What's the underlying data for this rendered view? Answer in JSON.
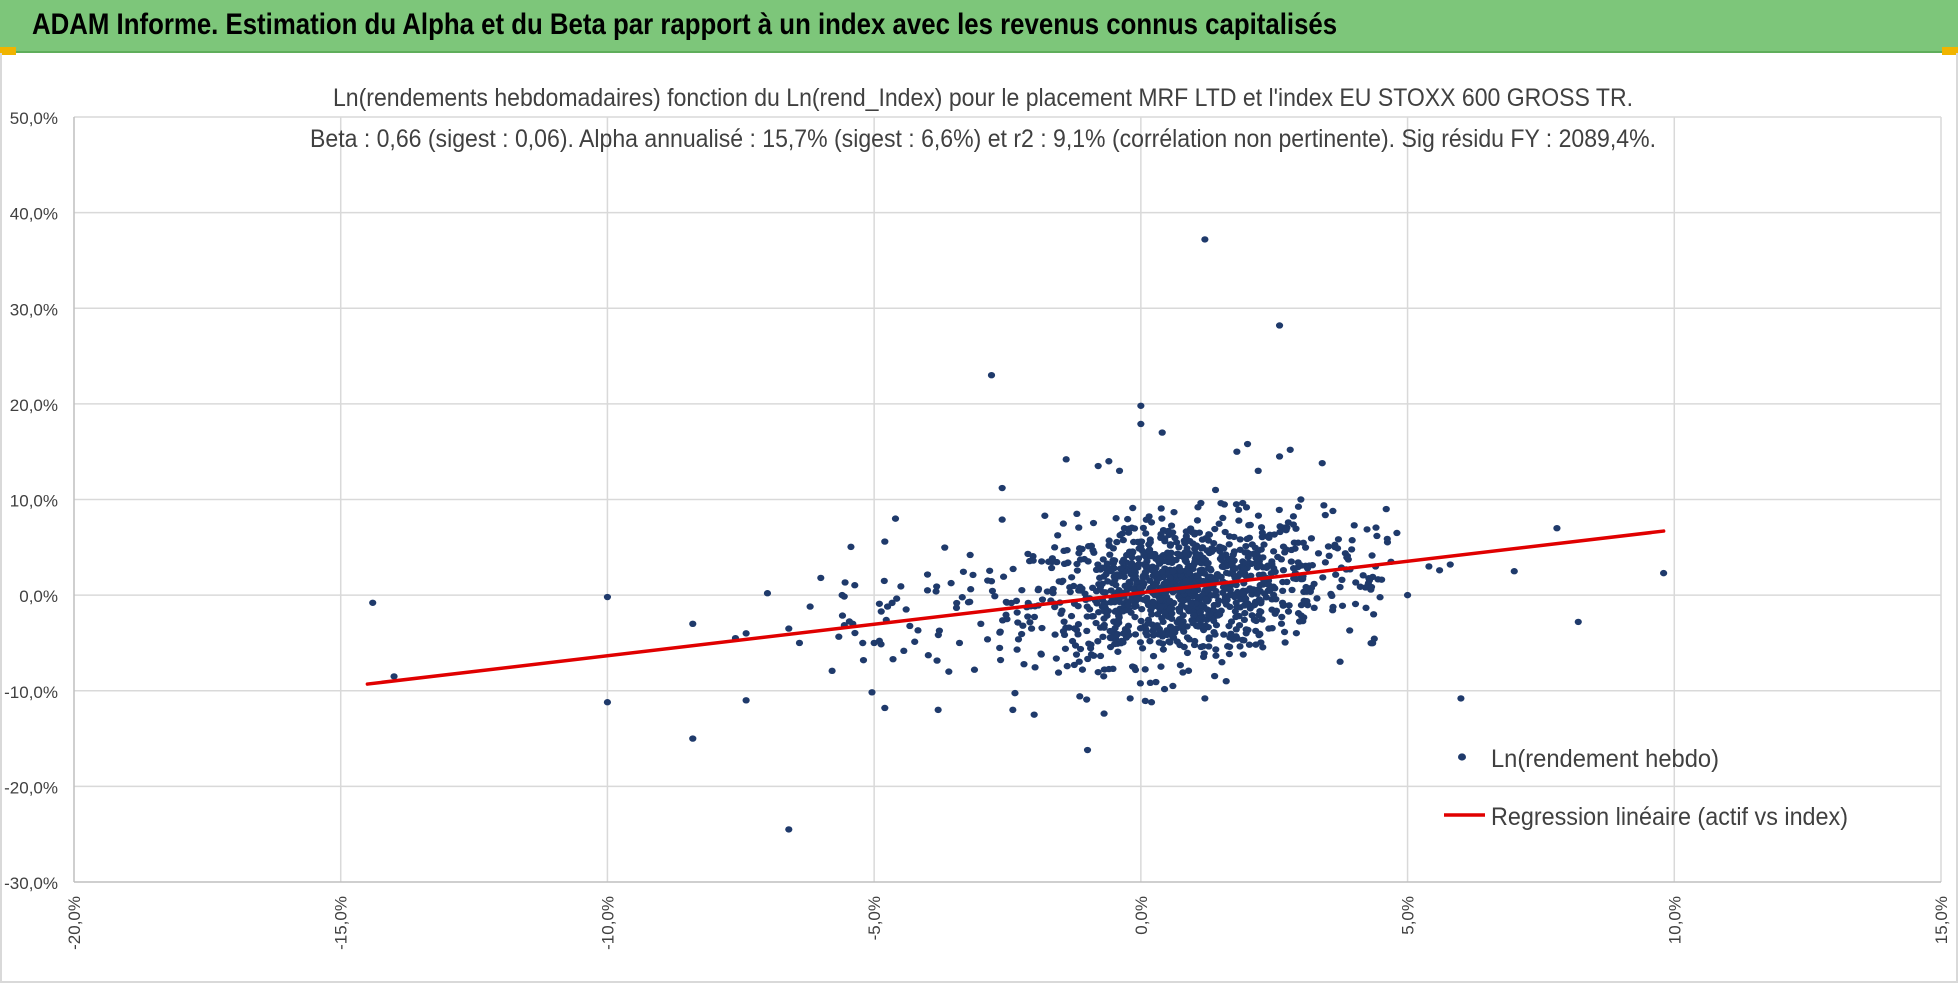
{
  "header": {
    "title": "ADAM Informe. Estimation du Alpha et du Beta par rapport à un index avec les revenus connus capitalisés"
  },
  "colors": {
    "header_bg": "#7dc67a",
    "corner_accent": "#f0b400",
    "points": "#1f3a6b",
    "regression": "#e00000",
    "grid": "#d9d9d9"
  },
  "chart_data": {
    "type": "scatter",
    "title": "Ln(rendements hebdomadaires) fonction du Ln(rend_Index) pour le placement MRF LTD et l'index EU STOXX 600 GROSS TR.",
    "subtitle": "Beta : 0,66 (sigest : 0,06).  Alpha annualisé : 15,7% (sigest : 6,6%) et r2 : 9,1% (corrélation non pertinente). Sig résidu FY : 2089,4%.",
    "xlabel": "",
    "ylabel": "",
    "xlim": [
      -20,
      15
    ],
    "ylim": [
      -30,
      50
    ],
    "x_ticks": [
      -20,
      -15,
      -10,
      -5,
      0,
      5,
      10,
      15
    ],
    "y_ticks": [
      -30,
      -20,
      -10,
      0,
      10,
      20,
      30,
      40,
      50
    ],
    "x_tick_labels": [
      "-20,0%",
      "-15,0%",
      "-10,0%",
      "-5,0%",
      "0,0%",
      "5,0%",
      "10,0%",
      "15,0%"
    ],
    "y_tick_labels": [
      "-30,0%",
      "-20,0%",
      "-10,0%",
      "0,0%",
      "10,0%",
      "20,0%",
      "30,0%",
      "40,0%",
      "50,0%"
    ],
    "grid": true,
    "legend_position": "bottom-right",
    "series": [
      {
        "name": "Ln(rendement hebdo)",
        "kind": "scatter",
        "points": [
          [
            -14.4,
            -0.8
          ],
          [
            -14.0,
            -8.5
          ],
          [
            -10.0,
            -0.2
          ],
          [
            -10.0,
            -11.2
          ],
          [
            -8.4,
            -3.0
          ],
          [
            -8.4,
            -15.0
          ],
          [
            -7.6,
            -4.5
          ],
          [
            -7.4,
            -4.0
          ],
          [
            -7.4,
            -11.0
          ],
          [
            -7.0,
            0.2
          ],
          [
            -6.6,
            -24.5
          ],
          [
            -6.6,
            -3.5
          ],
          [
            -6.4,
            -5.0
          ],
          [
            -6.2,
            -1.2
          ],
          [
            -6.0,
            1.8
          ],
          [
            -5.6,
            0.0
          ],
          [
            -5.4,
            -3.0
          ],
          [
            -5.2,
            -6.8
          ],
          [
            -5.0,
            -5.0
          ],
          [
            -4.8,
            -11.8
          ],
          [
            -4.8,
            5.6
          ],
          [
            -4.6,
            8.0
          ],
          [
            -4.4,
            -1.5
          ],
          [
            -4.0,
            0.5
          ],
          [
            -3.8,
            -12.0
          ],
          [
            -3.6,
            -8.0
          ],
          [
            -3.4,
            -5.0
          ],
          [
            -3.2,
            4.2
          ],
          [
            -3.0,
            -3.0
          ],
          [
            -2.8,
            23.0
          ],
          [
            -2.6,
            11.2
          ],
          [
            -2.6,
            7.9
          ],
          [
            -2.4,
            -12.0
          ],
          [
            -2.0,
            -12.5
          ],
          [
            -1.8,
            8.3
          ],
          [
            -1.4,
            14.2
          ],
          [
            -1.2,
            8.5
          ],
          [
            -1.0,
            -16.2
          ],
          [
            -0.8,
            13.5
          ],
          [
            -0.6,
            14.0
          ],
          [
            -0.4,
            13.0
          ],
          [
            -0.2,
            -10.8
          ],
          [
            0.0,
            19.8
          ],
          [
            0.0,
            17.9
          ],
          [
            0.2,
            -11.2
          ],
          [
            0.4,
            17.0
          ],
          [
            0.6,
            -9.5
          ],
          [
            1.2,
            37.2
          ],
          [
            1.2,
            -10.8
          ],
          [
            1.4,
            11.0
          ],
          [
            1.6,
            -9.0
          ],
          [
            1.8,
            15.0
          ],
          [
            2.0,
            15.8
          ],
          [
            2.2,
            13.0
          ],
          [
            2.4,
            -3.5
          ],
          [
            2.6,
            14.5
          ],
          [
            2.6,
            28.2
          ],
          [
            2.8,
            15.2
          ],
          [
            3.0,
            10.0
          ],
          [
            3.4,
            13.8
          ],
          [
            3.6,
            8.8
          ],
          [
            4.0,
            7.3
          ],
          [
            4.4,
            3.0
          ],
          [
            4.6,
            9.0
          ],
          [
            4.8,
            6.5
          ],
          [
            5.0,
            0.0
          ],
          [
            5.4,
            3.0
          ],
          [
            5.6,
            2.6
          ],
          [
            5.8,
            3.2
          ],
          [
            6.0,
            -10.8
          ],
          [
            7.0,
            2.5
          ],
          [
            7.8,
            7.0
          ],
          [
            8.2,
            -2.8
          ],
          [
            9.8,
            2.3
          ]
        ]
      },
      {
        "name": "Regression linéaire (actif vs index)",
        "kind": "line",
        "points": [
          [
            -14.5,
            -9.3
          ],
          [
            9.8,
            6.7
          ]
        ]
      }
    ]
  }
}
